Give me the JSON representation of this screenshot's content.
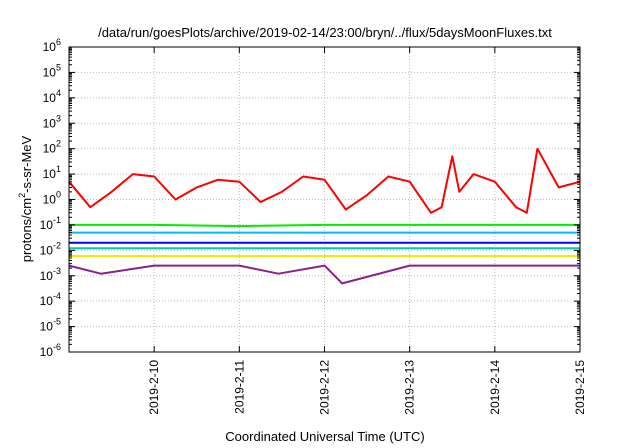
{
  "chart_data": {
    "type": "line",
    "title": "/data/run/goesPlots/archive/2019-02-14/23:00/bryn/../flux/5daysMoonFluxes.txt",
    "xlabel": "Coordinated Universal Time (UTC)",
    "ylabel": "protons/cm²-s-sr-MeV",
    "ylabel_parts": [
      "protons/cm",
      "2",
      "-s-sr-MeV"
    ],
    "xlim": [
      "2019-02-09",
      "2019-02-15"
    ],
    "x_ticks": [
      "2019-2-10",
      "2019-2-11",
      "2019-2-12",
      "2019-2-13",
      "2019-2-14",
      "2019-2-15"
    ],
    "y_scale": "log",
    "ylim": [
      1e-06,
      1000000.0
    ],
    "y_ticks": [
      {
        "base": "10",
        "exp": "-6"
      },
      {
        "base": "10",
        "exp": "-5"
      },
      {
        "base": "10",
        "exp": "-4"
      },
      {
        "base": "10",
        "exp": "-3"
      },
      {
        "base": "10",
        "exp": "-2"
      },
      {
        "base": "10",
        "exp": "-1"
      },
      {
        "base": "10",
        "exp": "0"
      },
      {
        "base": "10",
        "exp": "1"
      },
      {
        "base": "10",
        "exp": "2"
      },
      {
        "base": "10",
        "exp": "3"
      },
      {
        "base": "10",
        "exp": "4"
      },
      {
        "base": "10",
        "exp": "5"
      },
      {
        "base": "10",
        "exp": "6"
      }
    ],
    "grid": true,
    "series": [
      {
        "color": "#ff0000",
        "x": [
          "2019-02-09 00:00",
          "2019-02-09 06:00",
          "2019-02-09 12:00",
          "2019-02-09 18:00",
          "2019-02-10 00:00",
          "2019-02-10 06:00",
          "2019-02-10 12:00",
          "2019-02-10 18:00",
          "2019-02-11 00:00",
          "2019-02-11 06:00",
          "2019-02-11 12:00",
          "2019-02-11 18:00",
          "2019-02-12 00:00",
          "2019-02-12 06:00",
          "2019-02-12 12:00",
          "2019-02-12 18:00",
          "2019-02-13 00:00",
          "2019-02-13 06:00",
          "2019-02-13 09:00",
          "2019-02-13 12:00",
          "2019-02-13 14:00",
          "2019-02-13 18:00",
          "2019-02-14 00:00",
          "2019-02-14 06:00",
          "2019-02-14 09:00",
          "2019-02-14 12:00",
          "2019-02-14 18:00",
          "2019-02-15 00:00"
        ],
        "y": [
          5,
          0.5,
          2,
          10,
          8,
          1,
          3,
          6,
          5,
          0.8,
          2,
          8,
          6,
          0.4,
          1.5,
          8,
          5,
          0.3,
          0.5,
          50,
          2,
          10,
          5,
          0.5,
          0.3,
          100,
          3,
          5
        ]
      },
      {
        "color": "#00ee00",
        "x": [
          "2019-02-09 00:00",
          "2019-02-10 00:00",
          "2019-02-11 00:00",
          "2019-02-12 00:00",
          "2019-02-13 00:00",
          "2019-02-14 00:00",
          "2019-02-15 00:00"
        ],
        "y": [
          0.1,
          0.1,
          0.09,
          0.1,
          0.1,
          0.1,
          0.1
        ]
      },
      {
        "color": "#00bbff",
        "x": [
          "2019-02-09 00:00",
          "2019-02-10 00:00",
          "2019-02-11 00:00",
          "2019-02-12 00:00",
          "2019-02-13 00:00",
          "2019-02-14 00:00",
          "2019-02-15 00:00"
        ],
        "y": [
          0.05,
          0.05,
          0.05,
          0.05,
          0.05,
          0.05,
          0.05
        ]
      },
      {
        "color": "#0000ff",
        "x": [
          "2019-02-09 00:00",
          "2019-02-10 00:00",
          "2019-02-11 00:00",
          "2019-02-12 00:00",
          "2019-02-13 00:00",
          "2019-02-14 00:00",
          "2019-02-15 00:00"
        ],
        "y": [
          0.02,
          0.02,
          0.02,
          0.02,
          0.02,
          0.02,
          0.02
        ]
      },
      {
        "color": "#00ccaa",
        "x": [
          "2019-02-09 00:00",
          "2019-02-10 00:00",
          "2019-02-11 00:00",
          "2019-02-12 00:00",
          "2019-02-13 00:00",
          "2019-02-14 00:00",
          "2019-02-15 00:00"
        ],
        "y": [
          0.012,
          0.012,
          0.012,
          0.012,
          0.012,
          0.012,
          0.012
        ]
      },
      {
        "color": "#eeee00",
        "x": [
          "2019-02-09 00:00",
          "2019-02-10 00:00",
          "2019-02-11 00:00",
          "2019-02-12 00:00",
          "2019-02-13 00:00",
          "2019-02-14 00:00",
          "2019-02-15 00:00"
        ],
        "y": [
          0.006,
          0.006,
          0.006,
          0.006,
          0.006,
          0.006,
          0.006
        ]
      },
      {
        "color": "#882288",
        "x": [
          "2019-02-09 00:00",
          "2019-02-09 09:00",
          "2019-02-10 00:00",
          "2019-02-11 00:00",
          "2019-02-11 11:00",
          "2019-02-12 00:00",
          "2019-02-12 05:00",
          "2019-02-13 00:00",
          "2019-02-14 00:00",
          "2019-02-15 00:00"
        ],
        "y": [
          0.0025,
          0.0012,
          0.0025,
          0.0025,
          0.0012,
          0.0025,
          0.0005,
          0.0025,
          0.0025,
          0.0025
        ]
      }
    ]
  }
}
